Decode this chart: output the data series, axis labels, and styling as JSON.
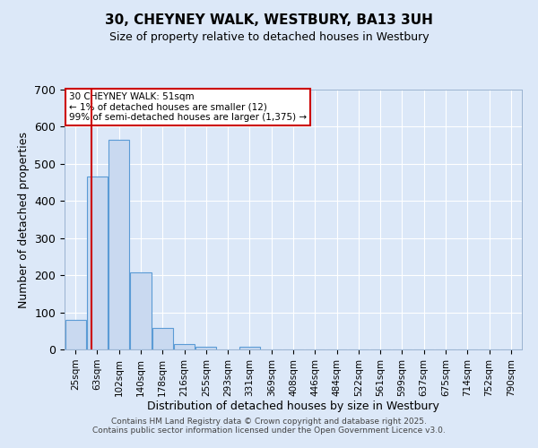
{
  "title": "30, CHEYNEY WALK, WESTBURY, BA13 3UH",
  "subtitle": "Size of property relative to detached houses in Westbury",
  "xlabel": "Distribution of detached houses by size in Westbury",
  "ylabel": "Number of detached properties",
  "bar_categories": [
    "25sqm",
    "63sqm",
    "102sqm",
    "140sqm",
    "178sqm",
    "216sqm",
    "255sqm",
    "293sqm",
    "331sqm",
    "369sqm",
    "408sqm",
    "446sqm",
    "484sqm",
    "522sqm",
    "561sqm",
    "599sqm",
    "637sqm",
    "675sqm",
    "714sqm",
    "752sqm",
    "790sqm"
  ],
  "bar_values": [
    80,
    465,
    565,
    207,
    58,
    15,
    8,
    0,
    8,
    0,
    0,
    0,
    0,
    0,
    0,
    0,
    0,
    0,
    0,
    0,
    0
  ],
  "bar_color": "#c9d9f0",
  "bar_edge_color": "#5b9bd5",
  "bg_color": "#dce8f8",
  "grid_color": "#ffffff",
  "red_line_x": 0.72,
  "annotation_text": "30 CHEYNEY WALK: 51sqm\n← 1% of detached houses are smaller (12)\n99% of semi-detached houses are larger (1,375) →",
  "annotation_box_color": "#ffffff",
  "annotation_box_edge": "#cc0000",
  "ylim": [
    0,
    700
  ],
  "yticks": [
    0,
    100,
    200,
    300,
    400,
    500,
    600,
    700
  ],
  "footer": "Contains HM Land Registry data © Crown copyright and database right 2025.\nContains public sector information licensed under the Open Government Licence v3.0.",
  "title_fontsize": 11,
  "subtitle_fontsize": 9,
  "tick_fontsize": 7.5,
  "ytick_fontsize": 9,
  "xlabel_fontsize": 9,
  "ylabel_fontsize": 9,
  "footer_fontsize": 6.5
}
